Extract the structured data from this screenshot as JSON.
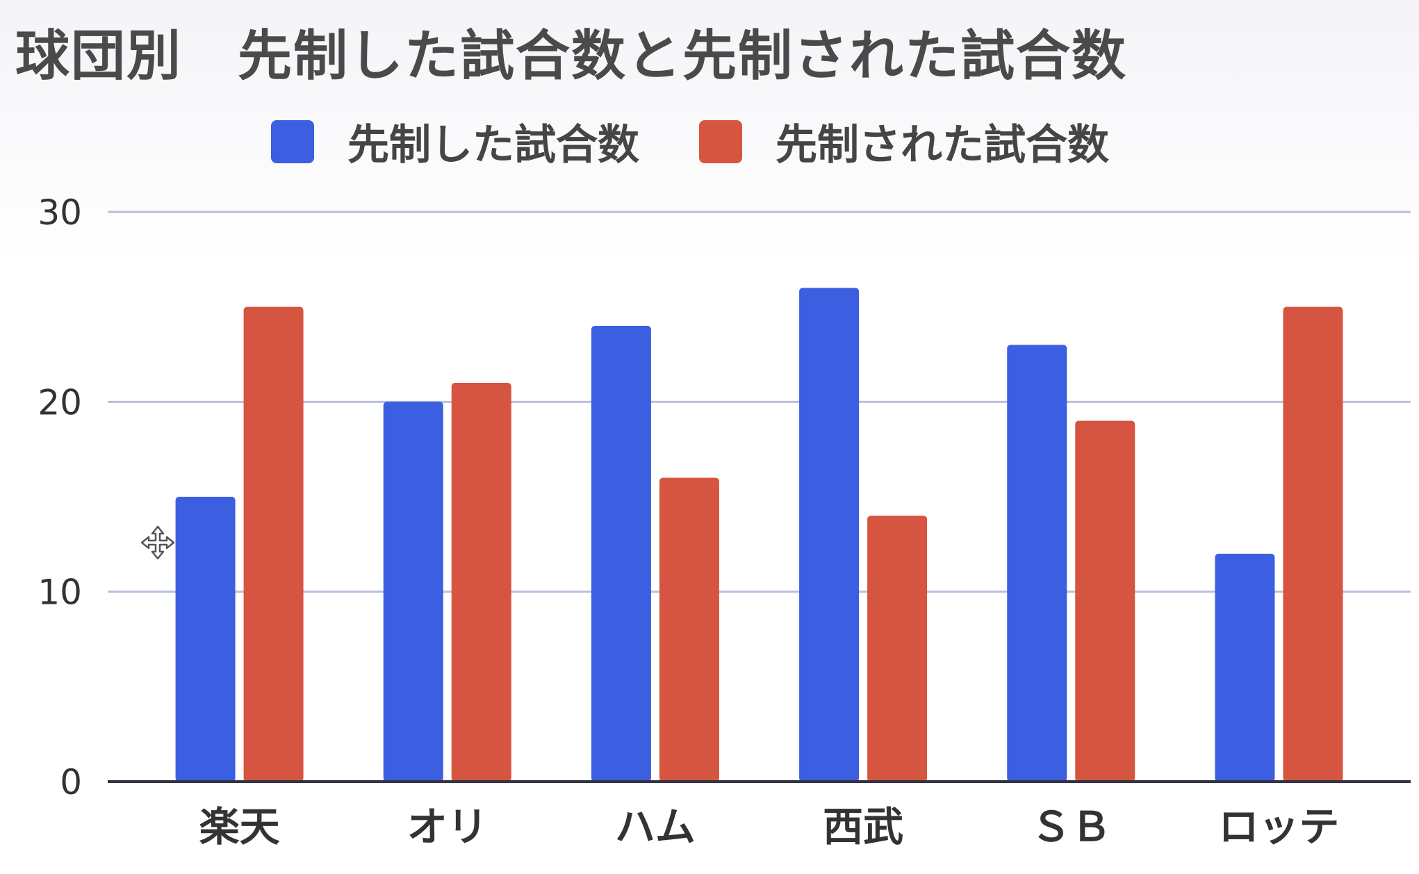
{
  "chart_data": {
    "type": "bar",
    "title": "球団別　先制した試合数と先制された試合数",
    "categories": [
      "楽天",
      "オリ",
      "ハム",
      "西武",
      "ＳＢ",
      "ロッテ"
    ],
    "series": [
      {
        "name": "先制した試合数",
        "color": "#3b5fe0",
        "values": [
          15,
          20,
          24,
          26,
          23,
          12
        ]
      },
      {
        "name": "先制された試合数",
        "color": "#d65540",
        "values": [
          25,
          21,
          16,
          14,
          19,
          25
        ]
      }
    ],
    "ylim": [
      0,
      30
    ],
    "yticks": [
      0,
      10,
      20,
      30
    ],
    "grid": true,
    "legend_position": "top"
  }
}
